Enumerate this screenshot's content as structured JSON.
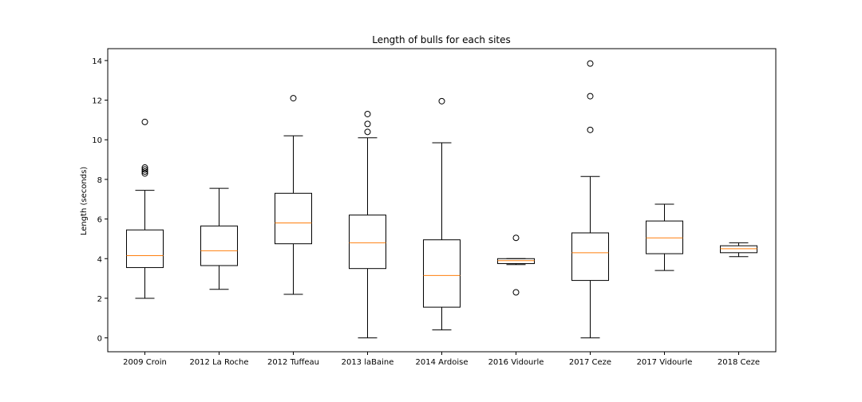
{
  "chart_data": {
    "type": "box",
    "title": "Length of bulls for each sites",
    "xlabel": "",
    "ylabel": "Length (seconds)",
    "ylim": [
      -0.7,
      14.6
    ],
    "yticks": [
      0,
      2,
      4,
      6,
      8,
      10,
      12,
      14
    ],
    "grid": false,
    "categories": [
      "2009 Croin",
      "2012 La Roche",
      "2012 Tuffeau",
      "2013 laBaine",
      "2014 Ardoise",
      "2016 Vidourle",
      "2017 Ceze",
      "2017 Vidourle",
      "2018 Ceze"
    ],
    "boxes": [
      {
        "whisker_low": 2.0,
        "q1": 3.55,
        "median": 4.15,
        "q3": 5.45,
        "whisker_high": 7.45,
        "outliers": [
          8.3,
          8.4,
          8.5,
          8.6,
          10.9
        ]
      },
      {
        "whisker_low": 2.45,
        "q1": 3.65,
        "median": 4.4,
        "q3": 5.65,
        "whisker_high": 7.55,
        "outliers": []
      },
      {
        "whisker_low": 2.2,
        "q1": 4.75,
        "median": 5.8,
        "q3": 7.3,
        "whisker_high": 10.2,
        "outliers": [
          12.1
        ]
      },
      {
        "whisker_low": 0.0,
        "q1": 3.5,
        "median": 4.8,
        "q3": 6.2,
        "whisker_high": 10.1,
        "outliers": [
          10.4,
          10.8,
          11.3
        ]
      },
      {
        "whisker_low": 0.4,
        "q1": 1.55,
        "median": 3.15,
        "q3": 4.95,
        "whisker_high": 9.85,
        "outliers": [
          11.95
        ]
      },
      {
        "whisker_low": 3.7,
        "q1": 3.75,
        "median": 3.9,
        "q3": 4.0,
        "whisker_high": 4.0,
        "outliers": [
          2.3,
          5.05
        ]
      },
      {
        "whisker_low": 0.0,
        "q1": 2.9,
        "median": 4.3,
        "q3": 5.3,
        "whisker_high": 8.15,
        "outliers": [
          10.5,
          12.2,
          13.85
        ]
      },
      {
        "whisker_low": 3.4,
        "q1": 4.25,
        "median": 5.05,
        "q3": 5.9,
        "whisker_high": 6.75,
        "outliers": []
      },
      {
        "whisker_low": 4.1,
        "q1": 4.3,
        "median": 4.5,
        "q3": 4.65,
        "whisker_high": 4.8,
        "outliers": []
      }
    ],
    "colors": {
      "box": "#000000",
      "median": "#ff7f0e",
      "outlier_edge": "#000000"
    }
  }
}
